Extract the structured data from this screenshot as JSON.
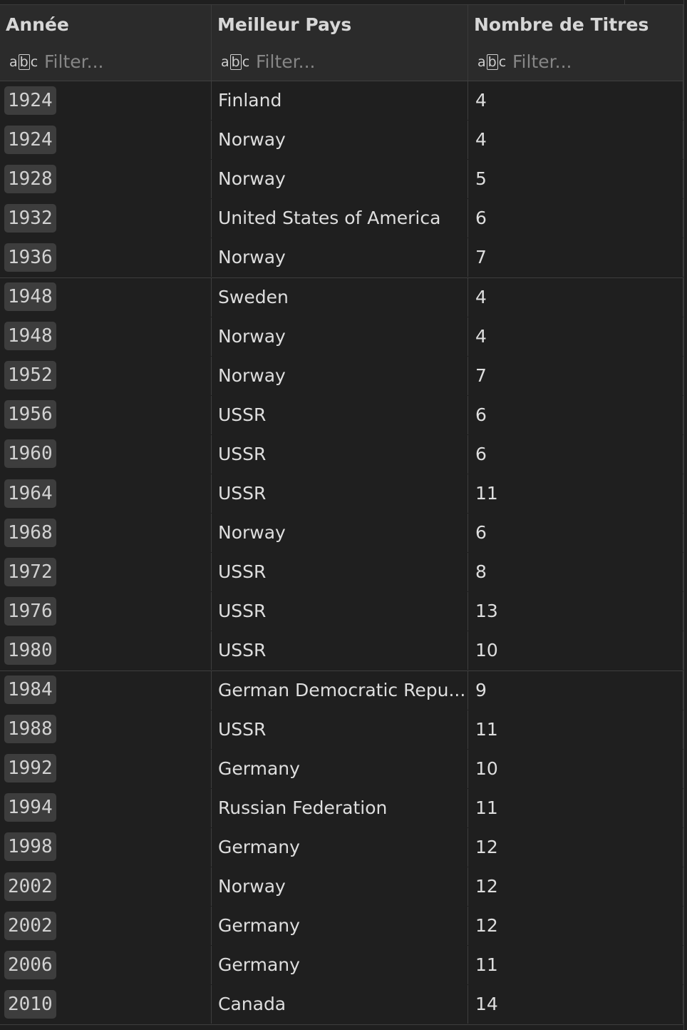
{
  "table": {
    "columns": [
      {
        "label": "Année",
        "filter_placeholder": "Filter...",
        "type_icon": "abc-icon"
      },
      {
        "label": "Meilleur Pays",
        "filter_placeholder": "Filter...",
        "type_icon": "abc-icon"
      },
      {
        "label": "Nombre de Titres",
        "filter_placeholder": "Filter...",
        "type_icon": "abc-icon"
      }
    ],
    "rows": [
      {
        "year": "1924",
        "country": "Finland",
        "titles": "4"
      },
      {
        "year": "1924",
        "country": "Norway",
        "titles": "4"
      },
      {
        "year": "1928",
        "country": "Norway",
        "titles": "5"
      },
      {
        "year": "1932",
        "country": "United States of America",
        "titles": "6"
      },
      {
        "year": "1936",
        "country": "Norway",
        "titles": "7"
      },
      {
        "year": "1948",
        "country": "Sweden",
        "titles": "4"
      },
      {
        "year": "1948",
        "country": "Norway",
        "titles": "4"
      },
      {
        "year": "1952",
        "country": "Norway",
        "titles": "7"
      },
      {
        "year": "1956",
        "country": "USSR",
        "titles": "6"
      },
      {
        "year": "1960",
        "country": "USSR",
        "titles": "6"
      },
      {
        "year": "1964",
        "country": "USSR",
        "titles": "11"
      },
      {
        "year": "1968",
        "country": "Norway",
        "titles": "6"
      },
      {
        "year": "1972",
        "country": "USSR",
        "titles": "8"
      },
      {
        "year": "1976",
        "country": "USSR",
        "titles": "13"
      },
      {
        "year": "1980",
        "country": "USSR",
        "titles": "10"
      },
      {
        "year": "1984",
        "country": "German Democratic Repu...",
        "titles": "9"
      },
      {
        "year": "1988",
        "country": "USSR",
        "titles": "11"
      },
      {
        "year": "1992",
        "country": "Germany",
        "titles": "10"
      },
      {
        "year": "1994",
        "country": "Russian Federation",
        "titles": "11"
      },
      {
        "year": "1998",
        "country": "Germany",
        "titles": "12"
      },
      {
        "year": "2002",
        "country": "Norway",
        "titles": "12"
      },
      {
        "year": "2002",
        "country": "Germany",
        "titles": "12"
      },
      {
        "year": "2006",
        "country": "Germany",
        "titles": "11"
      },
      {
        "year": "2010",
        "country": "Canada",
        "titles": "14"
      }
    ]
  }
}
